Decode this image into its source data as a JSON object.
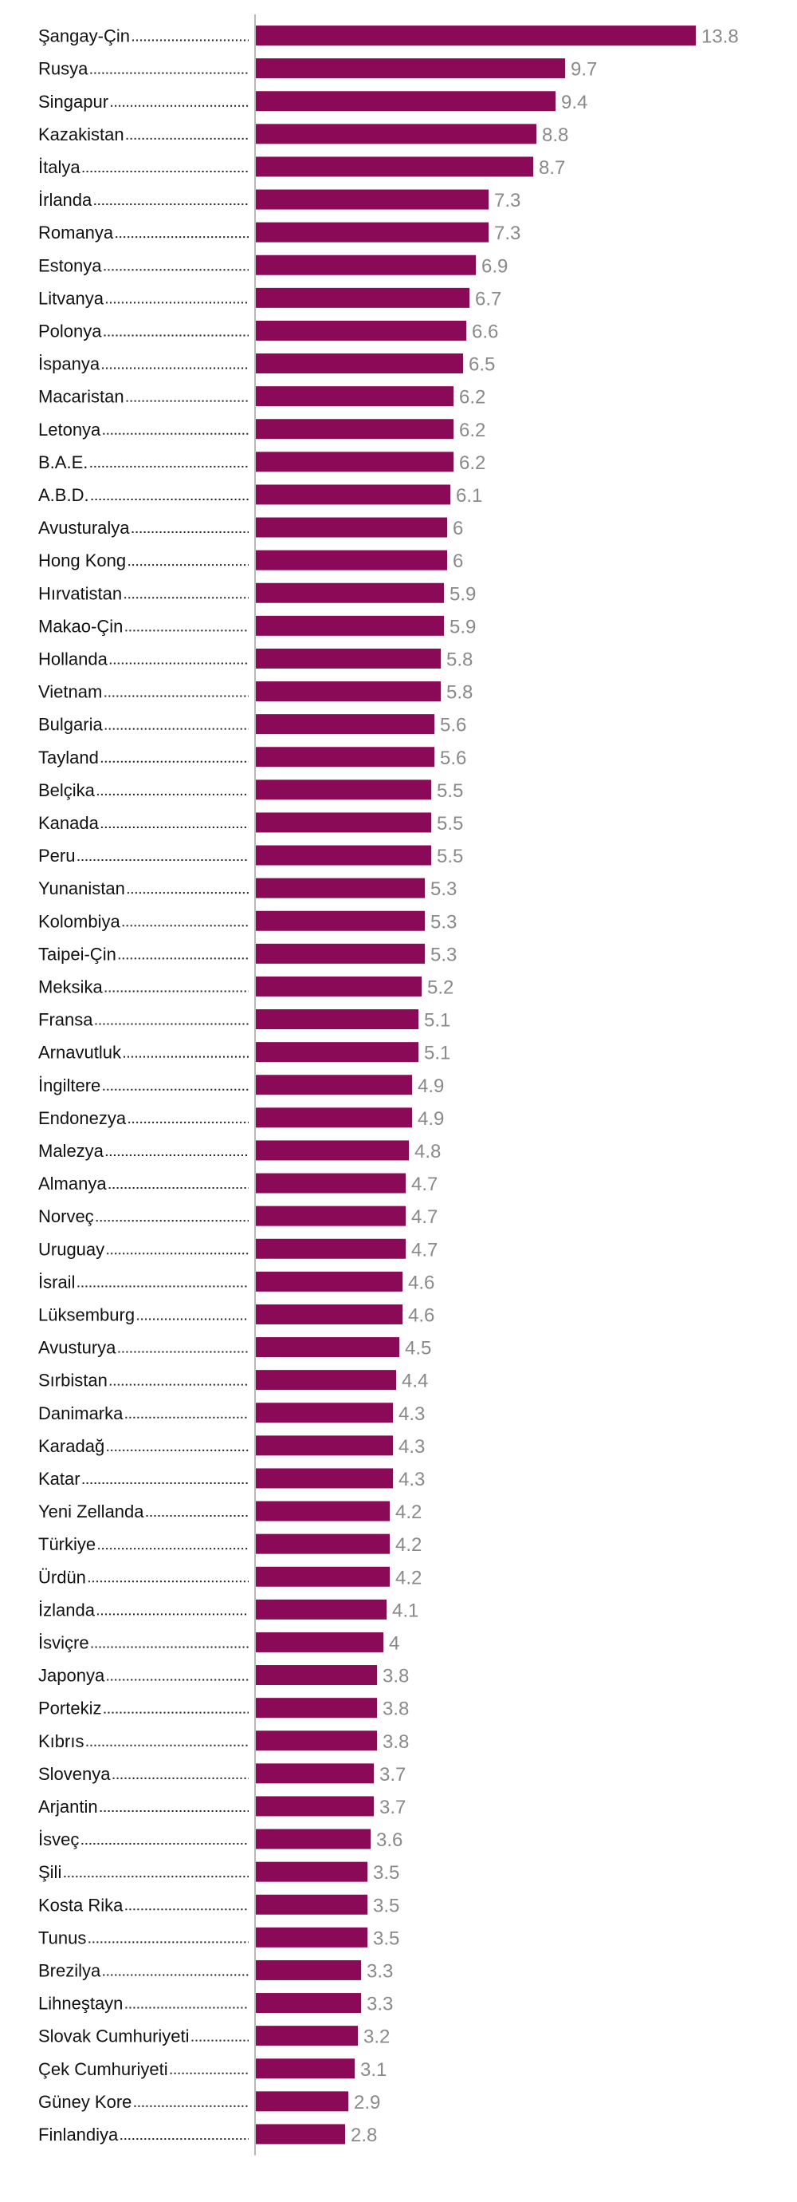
{
  "chart_data": {
    "type": "bar",
    "orientation": "horizontal",
    "title": "",
    "xlabel": "",
    "ylabel": "",
    "bar_color": "#8b0a57",
    "value_label_color": "#8a8a8a",
    "xlim": [
      0,
      14
    ],
    "grid": false,
    "legend": "none",
    "categories": [
      "Şangay-Çin",
      "Rusya",
      "Singapur",
      "Kazakistan",
      "İtalya",
      "İrlanda",
      "Romanya",
      "Estonya",
      "Litvanya",
      "Polonya",
      "İspanya",
      "Macaristan",
      "Letonya",
      "B.A.E.",
      "A.B.D.",
      "Avusturalya",
      "Hong Kong",
      "Hırvatistan",
      "Makao-Çin",
      "Hollanda",
      "Vietnam",
      "Bulgaria",
      "Tayland",
      "Belçika",
      "Kanada",
      "Peru",
      "Yunanistan",
      "Kolombiya",
      "Taipei-Çin",
      "Meksika",
      "Fransa",
      "Arnavutluk",
      "İngiltere",
      "Endonezya",
      "Malezya",
      "Almanya",
      "Norveç",
      "Uruguay",
      "İsrail",
      "Lüksemburg",
      "Avusturya",
      "Sırbistan",
      "Danimarka",
      "Karadağ",
      "Katar",
      "Yeni Zellanda",
      "Türkiye",
      "Ürdün",
      "İzlanda",
      "İsviçre",
      "Japonya",
      "Portekiz",
      "Kıbrıs",
      "Slovenya",
      "Arjantin",
      "İsveç",
      "Şili",
      "Kosta Rika",
      "Tunus",
      "Brezilya",
      "Lihneştayn",
      "Slovak Cumhuriyeti",
      "Çek Cumhuriyeti",
      "Güney Kore",
      "Finlandiya"
    ],
    "values": [
      13.8,
      9.7,
      9.4,
      8.8,
      8.7,
      7.3,
      7.3,
      6.9,
      6.7,
      6.6,
      6.5,
      6.2,
      6.2,
      6.2,
      6.1,
      6,
      6,
      5.9,
      5.9,
      5.8,
      5.8,
      5.6,
      5.6,
      5.5,
      5.5,
      5.5,
      5.3,
      5.3,
      5.3,
      5.2,
      5.1,
      5.1,
      4.9,
      4.9,
      4.8,
      4.7,
      4.7,
      4.7,
      4.6,
      4.6,
      4.5,
      4.4,
      4.3,
      4.3,
      4.3,
      4.2,
      4.2,
      4.2,
      4.1,
      4,
      3.8,
      3.8,
      3.8,
      3.7,
      3.7,
      3.6,
      3.5,
      3.5,
      3.5,
      3.3,
      3.3,
      3.2,
      3.1,
      2.9,
      2.8
    ]
  }
}
